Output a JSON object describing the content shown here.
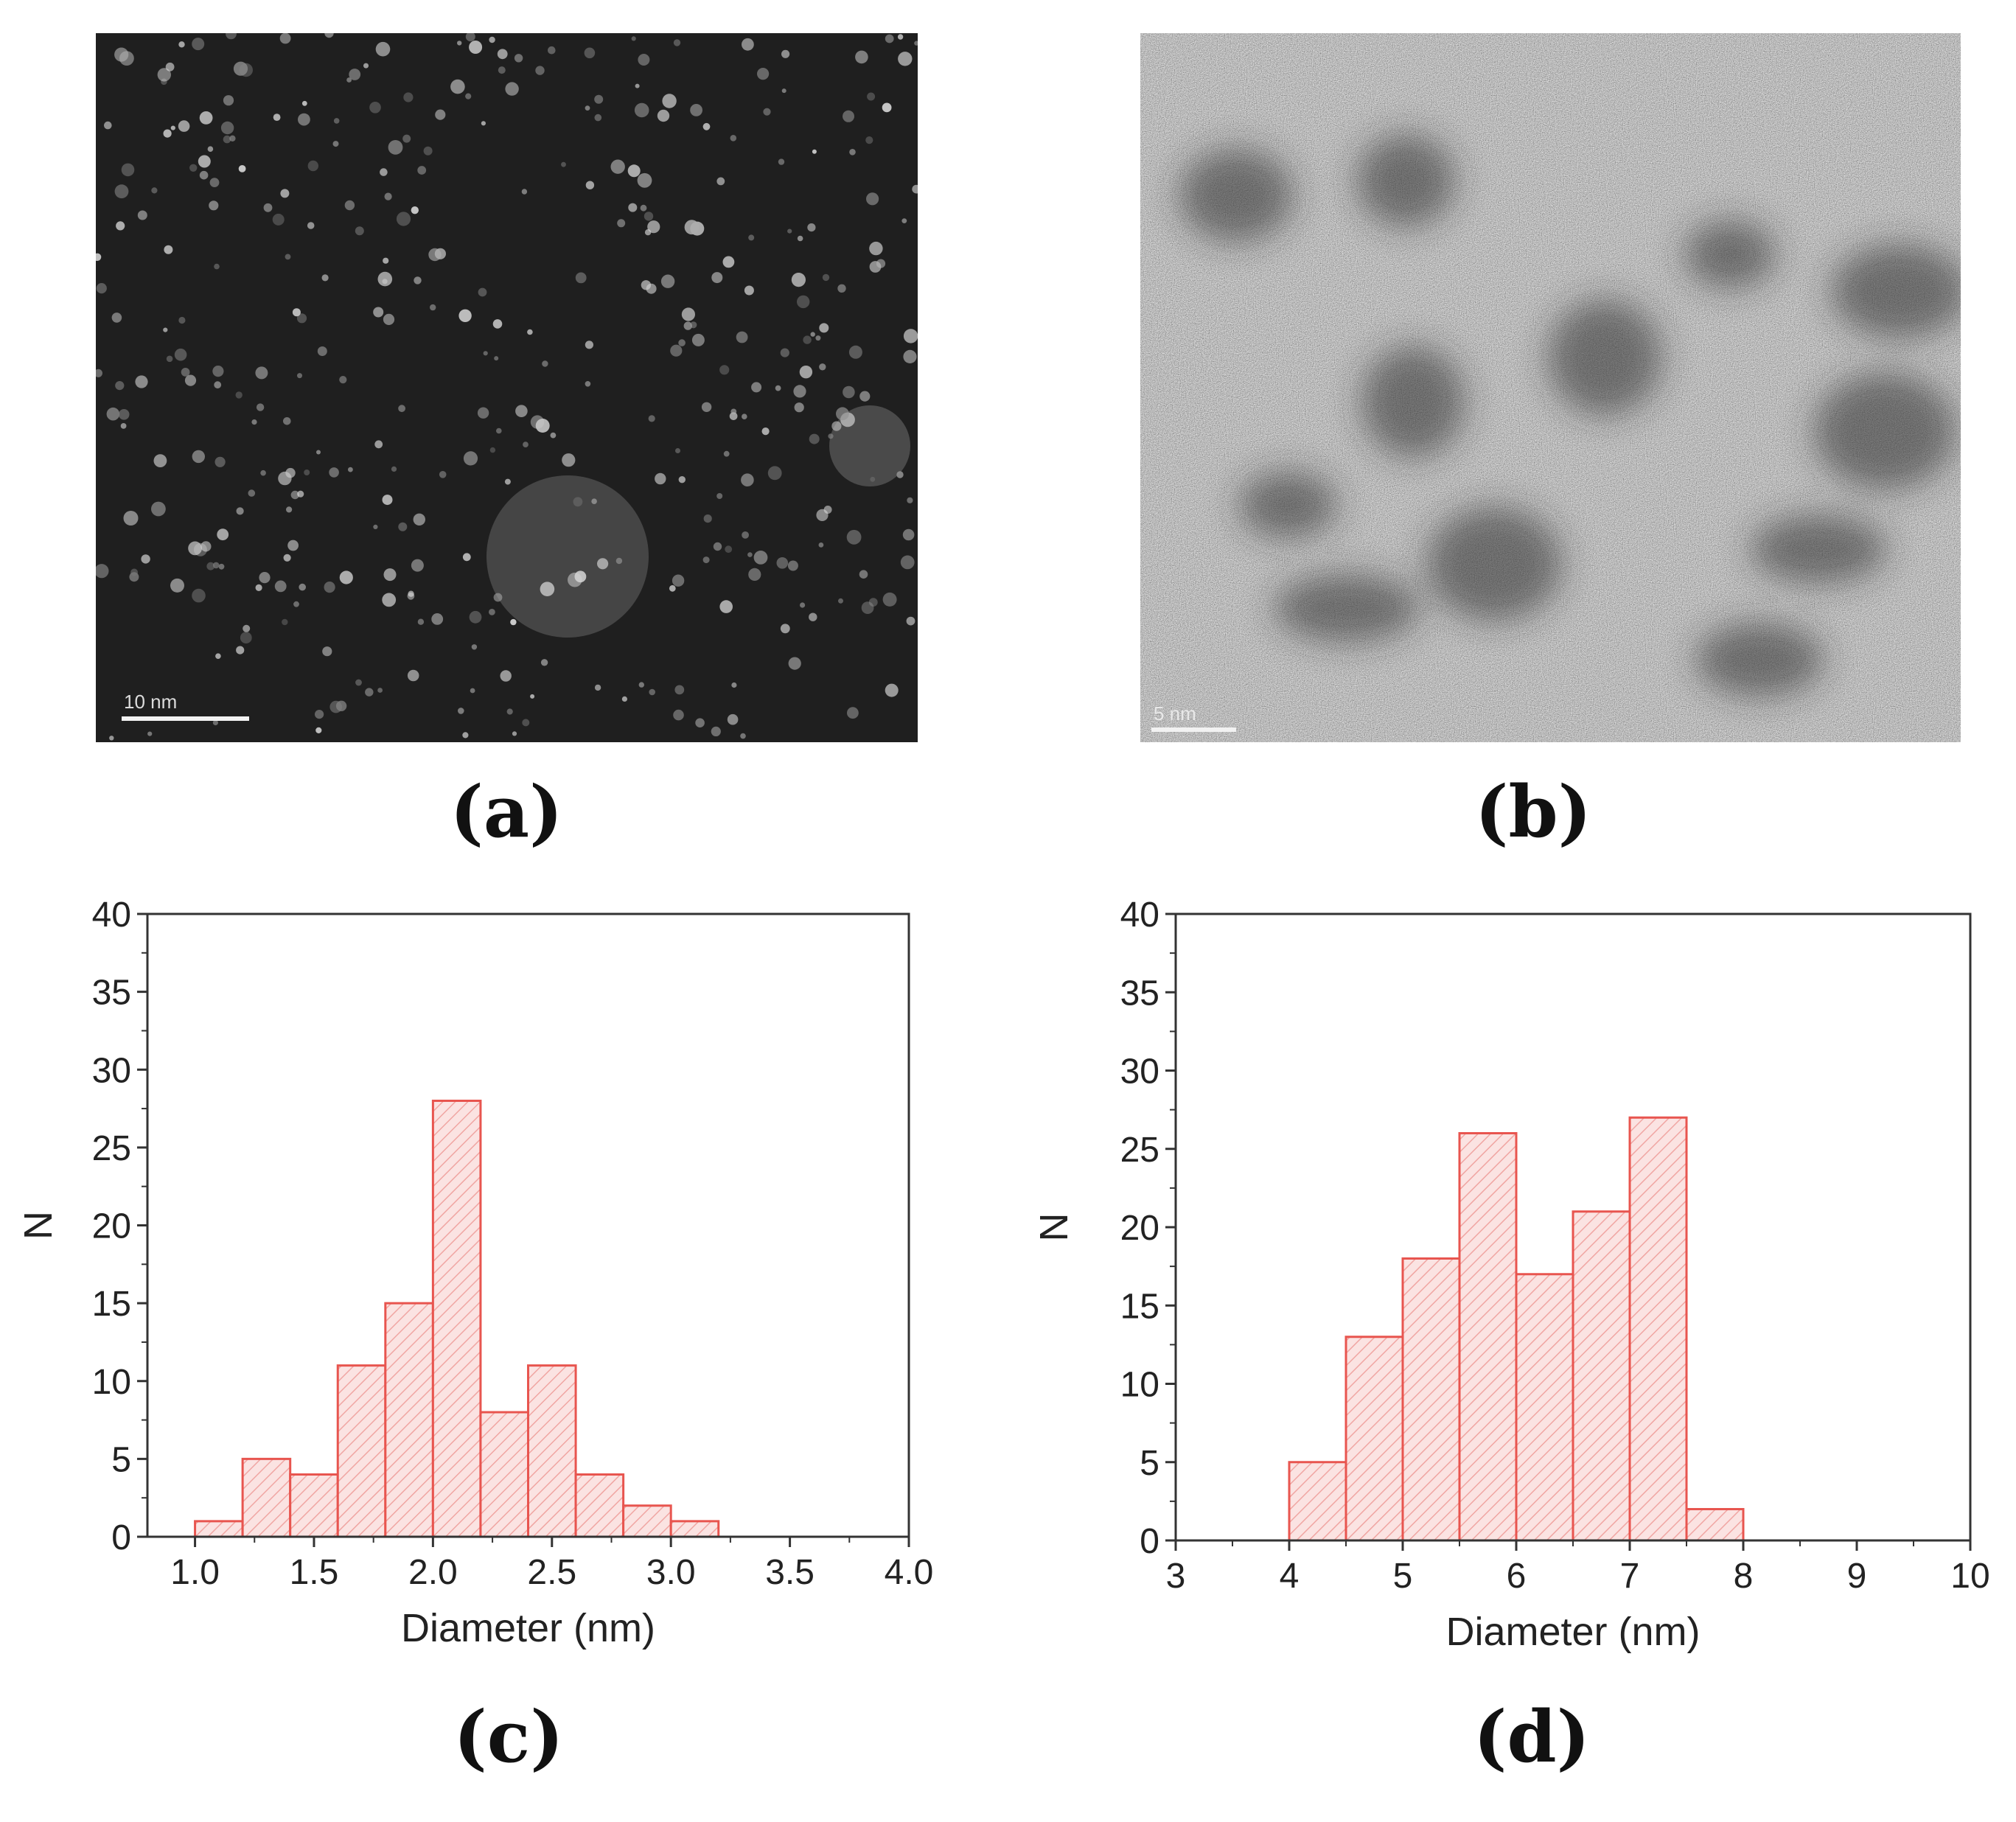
{
  "panels": {
    "a": {
      "label": "(a)",
      "scalebar": "10 nm"
    },
    "b": {
      "label": "(b)",
      "scalebar": "5 nm"
    },
    "c": {
      "label": "(c)"
    },
    "d": {
      "label": "(d)"
    }
  },
  "colors": {
    "bar_edge": "#e8554f",
    "bar_fill": "#fbe3e2",
    "hatch": "#f0a5a2"
  },
  "chart_data": [
    {
      "id": "c",
      "type": "bar",
      "title": "",
      "xlabel": "Diameter (nm)",
      "ylabel": "N",
      "xlim": [
        0.8,
        4.0
      ],
      "ylim": [
        0,
        40
      ],
      "xticks": [
        "1.0",
        "1.5",
        "2.0",
        "2.5",
        "3.0",
        "3.5",
        "4.0"
      ],
      "yticks": [
        "0",
        "5",
        "10",
        "15",
        "20",
        "25",
        "30",
        "35",
        "40"
      ],
      "bin_edges": [
        1.0,
        1.2,
        1.4,
        1.6,
        1.8,
        2.0,
        2.2,
        2.4,
        2.6,
        2.8,
        3.0,
        3.2
      ],
      "values": [
        1,
        5,
        4,
        11,
        15,
        28,
        8,
        11,
        4,
        2,
        1
      ]
    },
    {
      "id": "d",
      "type": "bar",
      "title": "",
      "xlabel": "Diameter (nm)",
      "ylabel": "N",
      "xlim": [
        3,
        10
      ],
      "ylim": [
        0,
        40
      ],
      "xticks": [
        "3",
        "4",
        "5",
        "6",
        "7",
        "8",
        "9",
        "10"
      ],
      "yticks": [
        "0",
        "5",
        "10",
        "15",
        "20",
        "25",
        "30",
        "35",
        "40"
      ],
      "bin_edges": [
        4.0,
        4.5,
        5.0,
        5.5,
        6.0,
        6.5,
        7.0,
        7.5,
        8.0
      ],
      "values": [
        5,
        13,
        18,
        26,
        17,
        21,
        27,
        2
      ]
    }
  ]
}
